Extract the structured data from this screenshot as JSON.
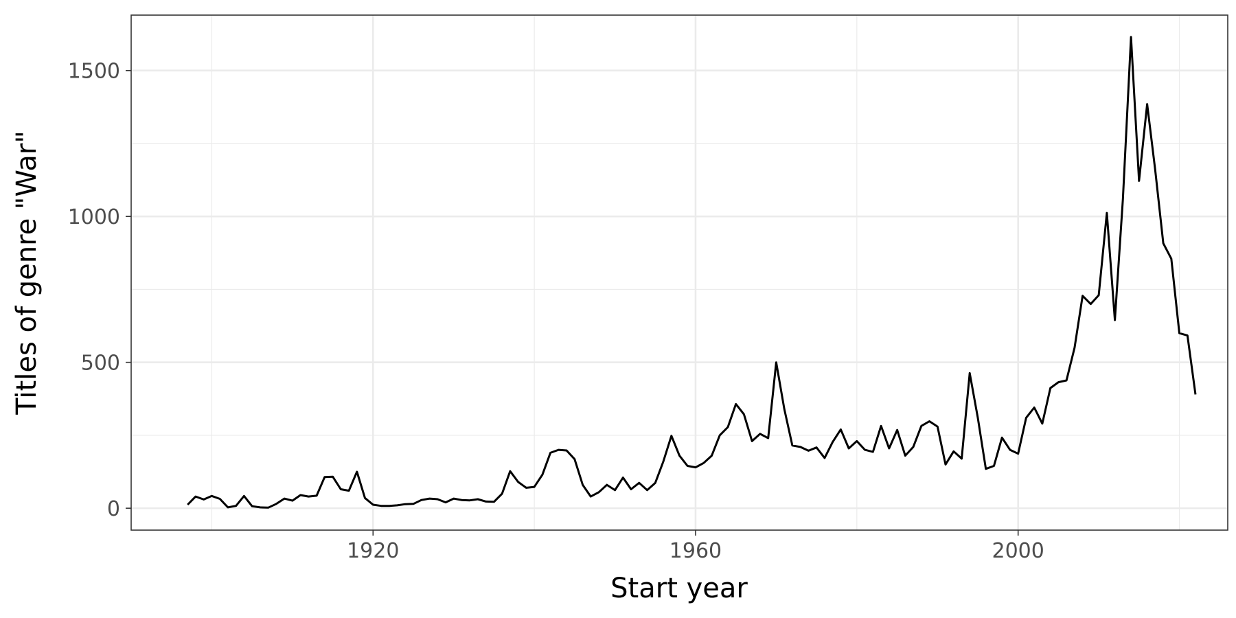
{
  "chart_data": {
    "type": "line",
    "title": "",
    "xlabel": "Start year",
    "ylabel": "Titles of genre \"War\"",
    "xlim": [
      1890,
      2026
    ],
    "ylim": [
      -75,
      1690
    ],
    "x_ticks": [
      1920,
      1960,
      2000
    ],
    "x_tick_labels": [
      "1920",
      "1960",
      "2000"
    ],
    "y_ticks": [
      0,
      500,
      1000,
      1500
    ],
    "y_tick_labels": [
      "0",
      "500",
      "1000",
      "1500"
    ],
    "grid": true,
    "legend": "none",
    "line_color": "#000000",
    "series": [
      {
        "x": [
          1897,
          1898,
          1899,
          1900,
          1901,
          1902,
          1903,
          1904,
          1905,
          1906,
          1907,
          1908,
          1909,
          1910,
          1911,
          1912,
          1913,
          1914,
          1915,
          1916,
          1917,
          1918,
          1919,
          1920,
          1921,
          1922,
          1923,
          1924,
          1925,
          1926,
          1927,
          1928,
          1929,
          1930,
          1931,
          1932,
          1933,
          1934,
          1935,
          1936,
          1937,
          1938,
          1939,
          1940,
          1941,
          1942,
          1943,
          1944,
          1945,
          1946,
          1947,
          1948,
          1949,
          1950,
          1951,
          1952,
          1953,
          1954,
          1955,
          1956,
          1957,
          1958,
          1959,
          1960,
          1961,
          1962,
          1963,
          1964,
          1965,
          1966,
          1967,
          1968,
          1969,
          1970,
          1971,
          1972,
          1973,
          1974,
          1975,
          1976,
          1977,
          1978,
          1979,
          1980,
          1981,
          1982,
          1983,
          1984,
          1985,
          1986,
          1987,
          1988,
          1989,
          1990,
          1991,
          1992,
          1993,
          1994,
          1995,
          1996,
          1997,
          1998,
          1999,
          2000,
          2001,
          2002,
          2003,
          2004,
          2005,
          2006,
          2007,
          2008,
          2009,
          2010,
          2011,
          2012,
          2013,
          2014,
          2015,
          2016,
          2017,
          2018,
          2019,
          2020,
          2021,
          2022
        ],
        "y": [
          12,
          40,
          30,
          42,
          32,
          3,
          8,
          42,
          7,
          3,
          2,
          15,
          33,
          26,
          45,
          40,
          43,
          107,
          108,
          65,
          60,
          125,
          35,
          12,
          8,
          8,
          10,
          14,
          15,
          28,
          33,
          31,
          20,
          33,
          28,
          27,
          31,
          23,
          22,
          50,
          127,
          90,
          70,
          73,
          115,
          190,
          200,
          198,
          168,
          80,
          40,
          55,
          80,
          62,
          105,
          65,
          87,
          62,
          87,
          160,
          248,
          180,
          145,
          140,
          155,
          180,
          250,
          278,
          357,
          322,
          230,
          255,
          240,
          500,
          340,
          215,
          210,
          197,
          208,
          172,
          227,
          270,
          205,
          230,
          200,
          193,
          282,
          205,
          268,
          180,
          210,
          282,
          298,
          280,
          150,
          195,
          170,
          463,
          310,
          135,
          145,
          242,
          200,
          187,
          310,
          345,
          290,
          412,
          432,
          438,
          550,
          728,
          700,
          730,
          1012,
          645,
          1060,
          1615,
          1122,
          1385,
          1160,
          908,
          855,
          600,
          592,
          390
        ]
      }
    ]
  }
}
